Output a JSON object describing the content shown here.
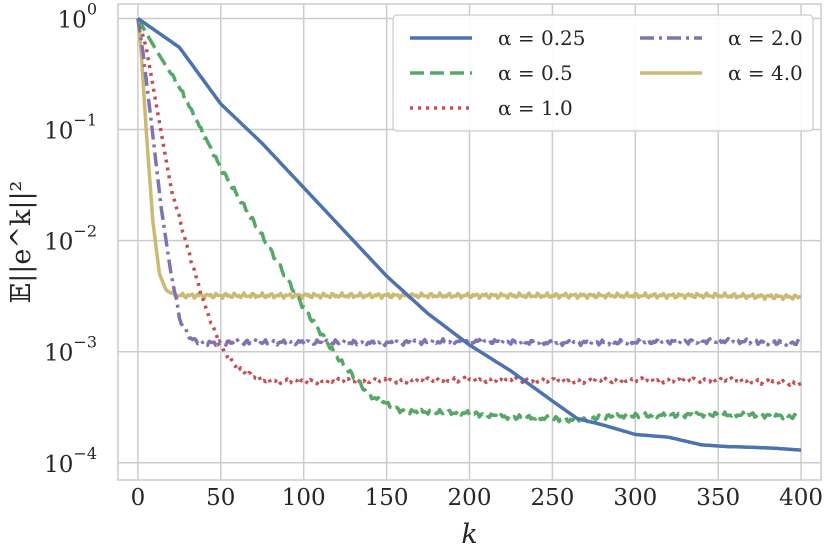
{
  "chart_data": {
    "type": "line",
    "xlabel": "k",
    "ylabel": "𝔼||e^k||²",
    "xlim": [
      -12,
      412
    ],
    "ylim": [
      7e-05,
      1.35
    ],
    "yscale": "log",
    "grid": true,
    "legend_position": "top-right",
    "x_ticks": [
      0,
      50,
      100,
      150,
      200,
      250,
      300,
      350,
      400
    ],
    "y_ticks": [
      {
        "value": 1,
        "base": "10",
        "exp": "0"
      },
      {
        "value": 0.1,
        "base": "10",
        "exp": "−1"
      },
      {
        "value": 0.01,
        "base": "10",
        "exp": "−2"
      },
      {
        "value": 0.001,
        "base": "10",
        "exp": "−3"
      },
      {
        "value": 0.0001,
        "base": "10",
        "exp": "−4"
      }
    ],
    "series": [
      {
        "name": "α = 0.25",
        "color": "#4c72b0",
        "dash": "solid",
        "points": [
          [
            0,
            1.0
          ],
          [
            25,
            0.55
          ],
          [
            50,
            0.17
          ],
          [
            75,
            0.075
          ],
          [
            100,
            0.03
          ],
          [
            125,
            0.012
          ],
          [
            150,
            0.0048
          ],
          [
            175,
            0.0022
          ],
          [
            200,
            0.00115
          ],
          [
            225,
            0.00067
          ],
          [
            250,
            0.00036
          ],
          [
            265,
            0.00025
          ],
          [
            280,
            0.00022
          ],
          [
            300,
            0.00018
          ],
          [
            320,
            0.00017
          ],
          [
            340,
            0.000145
          ],
          [
            355,
            0.00014
          ],
          [
            370,
            0.000138
          ],
          [
            385,
            0.000135
          ],
          [
            400,
            0.00013
          ]
        ]
      },
      {
        "name": "α = 0.5",
        "color": "#55a868",
        "dash": "dashed",
        "points": [
          [
            0,
            1.0
          ],
          [
            10,
            0.55
          ],
          [
            25,
            0.24
          ],
          [
            50,
            0.045
          ],
          [
            75,
            0.011
          ],
          [
            100,
            0.0025
          ],
          [
            120,
            0.0009
          ],
          [
            140,
            0.0004
          ],
          [
            160,
            0.00029
          ],
          [
            200,
            0.00028
          ],
          [
            220,
            0.00026
          ],
          [
            250,
            0.00025
          ],
          [
            265,
            0.00024
          ],
          [
            280,
            0.00026
          ],
          [
            300,
            0.000265
          ],
          [
            340,
            0.000272
          ],
          [
            370,
            0.00027
          ],
          [
            400,
            0.00026
          ]
        ]
      },
      {
        "name": "α = 1.0",
        "color": "#c44e52",
        "dash": "dotted",
        "points": [
          [
            0,
            1.0
          ],
          [
            5,
            0.55
          ],
          [
            12,
            0.14
          ],
          [
            20,
            0.03
          ],
          [
            30,
            0.0085
          ],
          [
            40,
            0.0027
          ],
          [
            50,
            0.0011
          ],
          [
            60,
            0.0007
          ],
          [
            75,
            0.00055
          ],
          [
            100,
            0.00054
          ],
          [
            150,
            0.00055
          ],
          [
            200,
            0.00056
          ],
          [
            250,
            0.00055
          ],
          [
            300,
            0.00055
          ],
          [
            350,
            0.00056
          ],
          [
            400,
            0.00052
          ]
        ]
      },
      {
        "name": "α = 2.0",
        "color": "#8172b2",
        "dash": "dashdot",
        "points": [
          [
            0,
            1.0
          ],
          [
            3,
            0.5
          ],
          [
            8,
            0.12
          ],
          [
            14,
            0.02
          ],
          [
            20,
            0.005
          ],
          [
            26,
            0.0018
          ],
          [
            32,
            0.0013
          ],
          [
            40,
            0.0012
          ],
          [
            100,
            0.00122
          ],
          [
            150,
            0.0012
          ],
          [
            200,
            0.00125
          ],
          [
            250,
            0.0012
          ],
          [
            300,
            0.00122
          ],
          [
            350,
            0.00125
          ],
          [
            400,
            0.0012
          ]
        ]
      },
      {
        "name": "α = 4.0",
        "color": "#ccb974",
        "dash": "solid",
        "points": [
          [
            0,
            1.0
          ],
          [
            2,
            0.5
          ],
          [
            5,
            0.1
          ],
          [
            9,
            0.015
          ],
          [
            13,
            0.005
          ],
          [
            17,
            0.0036
          ],
          [
            22,
            0.0032
          ],
          [
            50,
            0.0032
          ],
          [
            100,
            0.0032
          ],
          [
            150,
            0.0032
          ],
          [
            200,
            0.0032
          ],
          [
            250,
            0.0032
          ],
          [
            300,
            0.0032
          ],
          [
            350,
            0.0032
          ],
          [
            400,
            0.0031
          ]
        ]
      }
    ]
  }
}
